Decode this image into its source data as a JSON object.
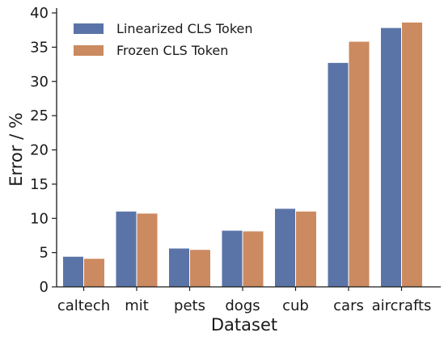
{
  "chart_data": {
    "type": "bar",
    "title": "",
    "xlabel": "Dataset",
    "ylabel": "Error / %",
    "ylim": [
      0,
      40
    ],
    "yticks": [
      0,
      5,
      10,
      15,
      20,
      25,
      30,
      35,
      40
    ],
    "categories": [
      "caltech",
      "mit",
      "pets",
      "dogs",
      "cub",
      "cars",
      "aircrafts"
    ],
    "series": [
      {
        "name": "Linearized CLS Token",
        "color": "#5a74a8",
        "values": [
          4.4,
          11.0,
          5.6,
          8.2,
          11.4,
          32.7,
          37.8
        ]
      },
      {
        "name": "Frozen CLS Token",
        "color": "#cc8a60",
        "values": [
          4.1,
          10.7,
          5.4,
          8.1,
          11.0,
          35.8,
          38.6
        ]
      }
    ],
    "legend": "top-left",
    "grid": false
  }
}
